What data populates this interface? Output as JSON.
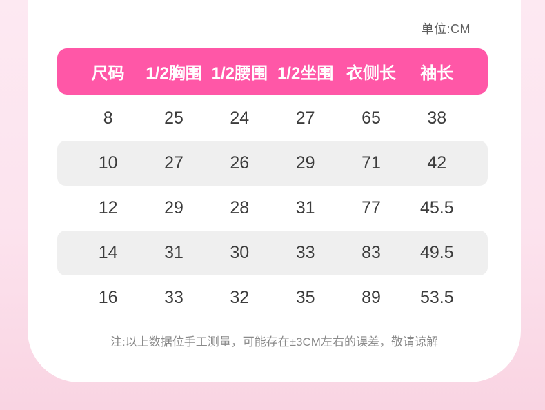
{
  "unit_label": "单位:CM",
  "note": "注:以上数据位手工测量，可能存在±3CM左右的误差，敬请谅解",
  "chart_data": {
    "type": "table",
    "columns": [
      "尺码",
      "1/2胸围",
      "1/2腰围",
      "1/2坐围",
      "衣侧长",
      "袖长"
    ],
    "rows": [
      [
        "8",
        "25",
        "24",
        "27",
        "65",
        "38"
      ],
      [
        "10",
        "27",
        "26",
        "29",
        "71",
        "42"
      ],
      [
        "12",
        "29",
        "28",
        "31",
        "77",
        "45.5"
      ],
      [
        "14",
        "31",
        "30",
        "33",
        "83",
        "49.5"
      ],
      [
        "16",
        "33",
        "32",
        "35",
        "89",
        "53.5"
      ]
    ]
  },
  "colors": {
    "header_pink": "#FF57A7",
    "background_pink_top": "#FDE9F2",
    "background_pink_bottom": "#F9D4E2",
    "stripe_gray": "#EFEFEF",
    "cell_text": "#3C3C3C",
    "note_text": "#8A8A8A",
    "card_white": "#FFFFFF"
  }
}
